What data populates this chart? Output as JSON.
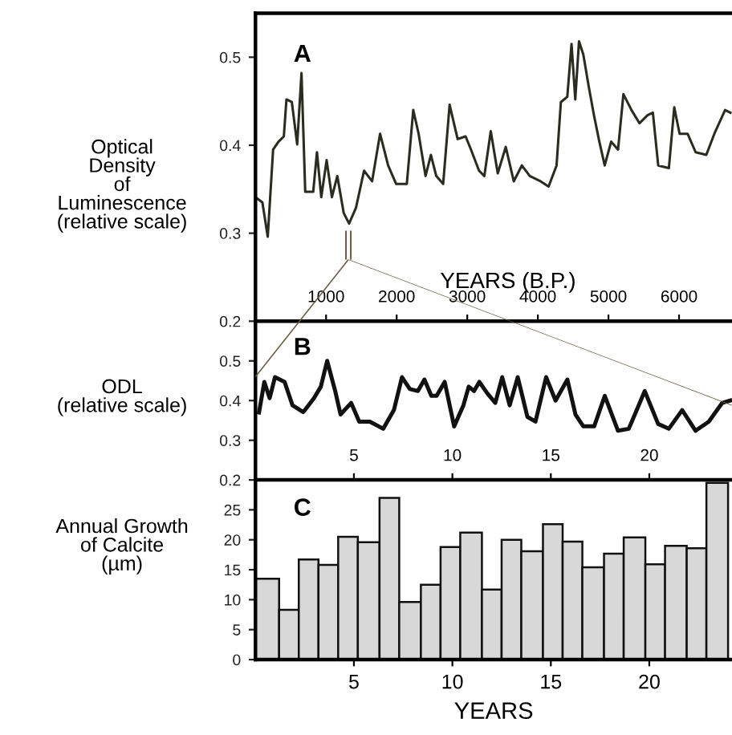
{
  "chart_data": [
    {
      "type": "line",
      "title": "A",
      "xlabel": "YEARS (B.P.)",
      "ylabel": "Optical\nDensity\nof\nLuminescence\n(relative scale)",
      "color": "#2b2b1f",
      "x": [
        0,
        98,
        174,
        250,
        326,
        402,
        439,
        515,
        591,
        652,
        705,
        818,
        871,
        932,
        1008,
        1083,
        1159,
        1250,
        1326,
        1424,
        1538,
        1652,
        1765,
        1879,
        1992,
        2144,
        2235,
        2311,
        2409,
        2485,
        2561,
        2659,
        2750,
        2864,
        2977,
        3053,
        3167,
        3242,
        3333,
        3432,
        3545,
        3659,
        3773,
        3886,
        4038,
        4152,
        4265,
        4326,
        4417,
        4477,
        4530,
        4583,
        4644,
        4720,
        4795,
        4871,
        4947,
        5038,
        5136,
        5212,
        5326,
        5439,
        5553,
        5629,
        5705,
        5856,
        5932,
        6008,
        6121,
        6235,
        6386,
        6500,
        6652,
        6727
      ],
      "values": [
        0.341,
        0.335,
        0.296,
        0.395,
        0.404,
        0.41,
        0.452,
        0.449,
        0.401,
        0.482,
        0.347,
        0.347,
        0.392,
        0.341,
        0.383,
        0.341,
        0.365,
        0.323,
        0.311,
        0.329,
        0.371,
        0.359,
        0.413,
        0.377,
        0.356,
        0.356,
        0.44,
        0.413,
        0.365,
        0.389,
        0.365,
        0.356,
        0.446,
        0.407,
        0.41,
        0.395,
        0.371,
        0.365,
        0.416,
        0.368,
        0.398,
        0.359,
        0.377,
        0.365,
        0.359,
        0.353,
        0.377,
        0.449,
        0.455,
        0.515,
        0.452,
        0.518,
        0.503,
        0.467,
        0.434,
        0.404,
        0.377,
        0.404,
        0.395,
        0.458,
        0.44,
        0.425,
        0.434,
        0.437,
        0.377,
        0.374,
        0.443,
        0.413,
        0.413,
        0.392,
        0.389,
        0.413,
        0.44,
        0.437
      ],
      "xlim": [
        0,
        6750
      ],
      "xticks": [
        1000,
        2000,
        3000,
        4000,
        5000,
        6000
      ],
      "ylim": [
        0.2,
        0.55
      ],
      "yticks": [
        0.2,
        0.3,
        0.4,
        0.5
      ]
    },
    {
      "type": "line",
      "title": "B",
      "ylabel": "ODL\n(relative scale)",
      "color": "#111111",
      "x": [
        0.18,
        0.45,
        0.72,
        0.99,
        1.48,
        1.88,
        2.43,
        2.97,
        3.32,
        3.64,
        4.05,
        4.32,
        4.86,
        5.27,
        5.81,
        6.49,
        7.03,
        7.44,
        7.84,
        8.25,
        8.58,
        8.93,
        9.2,
        9.61,
        10.09,
        10.56,
        10.83,
        11.1,
        11.37,
        11.78,
        12.18,
        12.53,
        12.91,
        13.32,
        13.81,
        14.22,
        14.76,
        15.24,
        15.84,
        16.25,
        16.65,
        17.2,
        17.74,
        18.41,
        18.96,
        19.77,
        20.45,
        20.99,
        21.67,
        22.35,
        23.02,
        23.7,
        24.11
      ],
      "values": [
        0.37,
        0.447,
        0.406,
        0.459,
        0.447,
        0.388,
        0.371,
        0.406,
        0.435,
        0.5,
        0.424,
        0.365,
        0.394,
        0.347,
        0.347,
        0.329,
        0.376,
        0.459,
        0.429,
        0.424,
        0.453,
        0.412,
        0.412,
        0.447,
        0.335,
        0.388,
        0.435,
        0.424,
        0.447,
        0.418,
        0.394,
        0.459,
        0.388,
        0.459,
        0.359,
        0.347,
        0.459,
        0.4,
        0.453,
        0.365,
        0.335,
        0.335,
        0.412,
        0.324,
        0.329,
        0.424,
        0.341,
        0.329,
        0.376,
        0.324,
        0.347,
        0.394,
        0.4
      ],
      "xlim": [
        0,
        24.2
      ],
      "xticks": [
        5,
        10,
        15,
        20
      ],
      "ylim": [
        0.2,
        0.6
      ],
      "yticks": [
        0.2,
        0.3,
        0.4,
        0.5
      ]
    },
    {
      "type": "histogram",
      "title": "C",
      "xlabel": "YEARS",
      "ylabel": "Annual Growth\nof Calcite\n(µm)",
      "color": "#d8d8d8",
      "bins": [
        0,
        1.2,
        2.2,
        3.2,
        4.2,
        5.2,
        6.3,
        7.3,
        8.4,
        9.4,
        10.4,
        11.5,
        12.5,
        13.5,
        14.6,
        15.6,
        16.6,
        17.7,
        18.7,
        19.8,
        20.8,
        21.9,
        22.9,
        24
      ],
      "values": [
        13.5,
        8.3,
        16.7,
        15.8,
        20.5,
        19.6,
        27,
        9.6,
        12.5,
        18.8,
        21.2,
        11.7,
        20,
        18.1,
        22.6,
        19.7,
        15.4,
        17.7,
        20.4,
        15.9,
        19,
        18.6,
        29.5
      ],
      "xlim": [
        0,
        24.2
      ],
      "xticks": [
        5,
        10,
        15,
        20
      ],
      "ylim": [
        0,
        30
      ],
      "yticks": [
        0,
        5,
        10,
        15,
        20,
        25
      ]
    }
  ]
}
